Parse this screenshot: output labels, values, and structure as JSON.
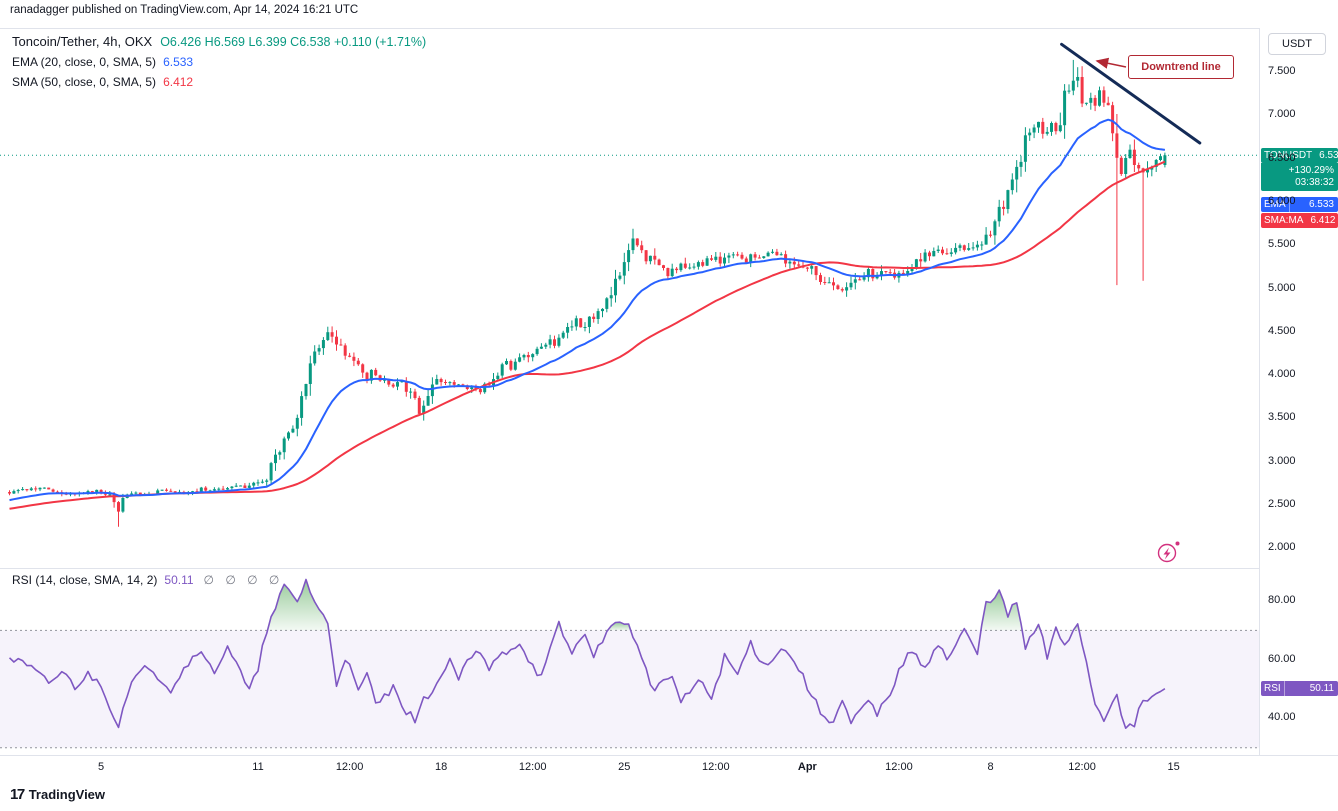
{
  "meta": {
    "publish_line": "ranadagger published on TradingView.com, Apr 14, 2024 16:21 UTC"
  },
  "header": {
    "title": "Toncoin/Tether, 4h, OKX",
    "ohlc_text": "O6.426  H6.569  L6.399  C6.538  +0.110 (+1.71%)",
    "ema_label": "EMA (20, close, 0, SMA, 5)",
    "ema_value": "6.533",
    "sma_label": "SMA (50, close, 0, SMA, 5)",
    "sma_value": "6.412"
  },
  "rsi_pane": {
    "label": "RSI (14, close, SMA, 14, 2)",
    "value": "50.11",
    "empties": "∅ ∅ ∅ ∅"
  },
  "axis": {
    "currency_label": "USDT"
  },
  "badges": {
    "price": {
      "symbol": "TONUSDT",
      "value": "6.538",
      "change_pct": "+130.29%",
      "countdown": "03:38:32"
    },
    "ema": {
      "label": "EMA",
      "value": "6.533"
    },
    "sma": {
      "label": "SMA:MA",
      "value": "6.412"
    },
    "rsi": {
      "label": "RSI",
      "value": "50.11"
    }
  },
  "annotations": {
    "callout_text": "Downtrend line"
  },
  "footer": {
    "brand": "TradingView",
    "logo_glyph": "17"
  },
  "colors": {
    "up": "#089981",
    "down": "#f23645",
    "ema": "#2962ff",
    "sma": "#f23645",
    "rsi": "#7e57c2",
    "overbought_fill": "#43a047",
    "trendline": "#142b57",
    "callout": "#b22833",
    "marker": "#d2317e",
    "muted": "#787b86",
    "grid_border": "#e0e3eb",
    "text": "#131722"
  },
  "chart_data": {
    "type": "candlestick",
    "title": "Toncoin/Tether, 4h, OKX",
    "symbol": "TONUSDT",
    "interval": "4h",
    "exchange": "OKX",
    "ohlc_current": {
      "open": 6.426,
      "high": 6.569,
      "low": 6.399,
      "close": 6.538,
      "change_abs": 0.11,
      "change_pct": 1.71
    },
    "indicators": {
      "ema20": 6.533,
      "sma50": 6.412,
      "rsi14": 50.11
    },
    "price_axis": {
      "ticks": [
        7.5,
        7.0,
        6.5,
        6.0,
        5.5,
        5.0,
        4.5,
        4.0,
        3.5,
        3.0,
        2.5,
        2.0
      ],
      "visible_range": [
        1.774,
        8.008
      ],
      "currency": "USDT"
    },
    "rsi_axis": {
      "ticks": [
        80,
        60,
        40
      ],
      "visible_range": [
        27.5,
        91.3
      ],
      "bands": [
        70,
        30
      ]
    },
    "candle_count": 266,
    "ema_seed": 2.55,
    "sma_seed_range": [
      2.25,
      2.65
    ],
    "current_price_line": 6.538,
    "close_path": [
      [
        0,
        2.65
      ],
      [
        4,
        2.68
      ],
      [
        7,
        2.7
      ],
      [
        10,
        2.66
      ],
      [
        14,
        2.62
      ],
      [
        18,
        2.67
      ],
      [
        21,
        2.66
      ],
      [
        24,
        2.57
      ],
      [
        25,
        2.42
      ],
      [
        26,
        2.56
      ],
      [
        28,
        2.65
      ],
      [
        32,
        2.63
      ],
      [
        35,
        2.66
      ],
      [
        40,
        2.64
      ],
      [
        44,
        2.69
      ],
      [
        48,
        2.67
      ],
      [
        51,
        2.72
      ],
      [
        54,
        2.7
      ],
      [
        57,
        2.76
      ],
      [
        59,
        2.82
      ],
      [
        61,
        3.05
      ],
      [
        63,
        3.25
      ],
      [
        65,
        3.42
      ],
      [
        67,
        3.7
      ],
      [
        69,
        4.1
      ],
      [
        71,
        4.35
      ],
      [
        73,
        4.48
      ],
      [
        74,
        4.42
      ],
      [
        75,
        4.34
      ],
      [
        77,
        4.26
      ],
      [
        79,
        4.15
      ],
      [
        81,
        4.03
      ],
      [
        82,
        3.96
      ],
      [
        83,
        4.03
      ],
      [
        85,
        3.94
      ],
      [
        88,
        3.89
      ],
      [
        90,
        3.92
      ],
      [
        92,
        3.77
      ],
      [
        94,
        3.58
      ],
      [
        95,
        3.66
      ],
      [
        97,
        3.85
      ],
      [
        98,
        3.94
      ],
      [
        100,
        3.89
      ],
      [
        103,
        3.9
      ],
      [
        106,
        3.85
      ],
      [
        108,
        3.83
      ],
      [
        111,
        3.95
      ],
      [
        113,
        4.08
      ],
      [
        114,
        4.15
      ],
      [
        115,
        4.08
      ],
      [
        117,
        4.17
      ],
      [
        120,
        4.26
      ],
      [
        122,
        4.34
      ],
      [
        124,
        4.42
      ],
      [
        125,
        4.34
      ],
      [
        128,
        4.52
      ],
      [
        130,
        4.63
      ],
      [
        131,
        4.54
      ],
      [
        134,
        4.68
      ],
      [
        136,
        4.8
      ],
      [
        138,
        4.92
      ],
      [
        140,
        5.15
      ],
      [
        142,
        5.45
      ],
      [
        143,
        5.56
      ],
      [
        144,
        5.46
      ],
      [
        146,
        5.3
      ],
      [
        147,
        5.38
      ],
      [
        149,
        5.25
      ],
      [
        151,
        5.12
      ],
      [
        152,
        5.19
      ],
      [
        154,
        5.27
      ],
      [
        156,
        5.21
      ],
      [
        159,
        5.3
      ],
      [
        161,
        5.35
      ],
      [
        163,
        5.3
      ],
      [
        166,
        5.38
      ],
      [
        168,
        5.32
      ],
      [
        170,
        5.38
      ],
      [
        172,
        5.35
      ],
      [
        175,
        5.42
      ],
      [
        177,
        5.35
      ],
      [
        179,
        5.27
      ],
      [
        181,
        5.3
      ],
      [
        184,
        5.21
      ],
      [
        186,
        5.12
      ],
      [
        188,
        5.04
      ],
      [
        191,
        4.96
      ],
      [
        193,
        5.04
      ],
      [
        194,
        5.12
      ],
      [
        197,
        5.19
      ],
      [
        199,
        5.12
      ],
      [
        201,
        5.21
      ],
      [
        203,
        5.15
      ],
      [
        206,
        5.23
      ],
      [
        208,
        5.3
      ],
      [
        210,
        5.38
      ],
      [
        213,
        5.46
      ],
      [
        215,
        5.42
      ],
      [
        217,
        5.5
      ],
      [
        219,
        5.46
      ],
      [
        222,
        5.53
      ],
      [
        224,
        5.58
      ],
      [
        225,
        5.67
      ],
      [
        226,
        5.79
      ],
      [
        228,
        5.95
      ],
      [
        229,
        6.08
      ],
      [
        230,
        6.19
      ],
      [
        231,
        6.31
      ],
      [
        232,
        6.48
      ],
      [
        233,
        6.71
      ],
      [
        234,
        6.83
      ],
      [
        236,
        6.88
      ],
      [
        237,
        6.77
      ],
      [
        238,
        6.83
      ],
      [
        239,
        6.92
      ],
      [
        240,
        6.85
      ],
      [
        241,
        6.97
      ],
      [
        242,
        7.23
      ],
      [
        244,
        7.43
      ],
      [
        245,
        7.35
      ],
      [
        246,
        7.23
      ],
      [
        247,
        7.12
      ],
      [
        248,
        7.2
      ],
      [
        249,
        7.08
      ],
      [
        250,
        7.23
      ],
      [
        252,
        7.06
      ],
      [
        253,
        6.88
      ],
      [
        254,
        6.6
      ],
      [
        255,
        6.36
      ],
      [
        256,
        6.48
      ],
      [
        257,
        6.56
      ],
      [
        258,
        6.44
      ],
      [
        260,
        6.31
      ],
      [
        261,
        6.36
      ],
      [
        262,
        6.44
      ],
      [
        263,
        6.51
      ],
      [
        264,
        6.48
      ],
      [
        265,
        6.538
      ]
    ],
    "wick_events": [
      {
        "i": 25,
        "low": 2.25
      },
      {
        "i": 73,
        "high": 4.56
      },
      {
        "i": 143,
        "high": 5.69
      },
      {
        "i": 244,
        "high": 7.64
      },
      {
        "i": 254,
        "low": 5.04
      },
      {
        "i": 260,
        "low": 5.09
      }
    ],
    "rsi_path": [
      [
        0,
        61
      ],
      [
        5,
        57
      ],
      [
        9,
        52
      ],
      [
        12,
        56
      ],
      [
        15,
        51
      ],
      [
        18,
        55
      ],
      [
        21,
        52
      ],
      [
        25,
        37
      ],
      [
        28,
        52
      ],
      [
        32,
        58
      ],
      [
        37,
        50
      ],
      [
        40,
        57
      ],
      [
        43,
        63
      ],
      [
        47,
        56
      ],
      [
        50,
        65
      ],
      [
        55,
        49
      ],
      [
        57,
        57
      ],
      [
        59,
        70
      ],
      [
        63,
        85
      ],
      [
        66,
        80
      ],
      [
        68,
        87
      ],
      [
        70,
        80
      ],
      [
        73,
        72
      ],
      [
        75,
        52
      ],
      [
        77,
        61
      ],
      [
        80,
        49
      ],
      [
        82,
        55
      ],
      [
        84,
        45
      ],
      [
        88,
        50
      ],
      [
        90,
        43
      ],
      [
        93,
        40
      ],
      [
        95,
        46
      ],
      [
        98,
        52
      ],
      [
        101,
        59
      ],
      [
        103,
        54
      ],
      [
        107,
        63
      ],
      [
        110,
        57
      ],
      [
        113,
        62
      ],
      [
        117,
        66
      ],
      [
        120,
        58
      ],
      [
        122,
        54
      ],
      [
        126,
        72
      ],
      [
        129,
        62
      ],
      [
        132,
        70
      ],
      [
        134,
        60
      ],
      [
        137,
        71
      ],
      [
        142,
        73
      ],
      [
        145,
        60
      ],
      [
        148,
        49
      ],
      [
        152,
        55
      ],
      [
        154,
        45
      ],
      [
        158,
        53
      ],
      [
        161,
        47
      ],
      [
        164,
        61
      ],
      [
        167,
        55
      ],
      [
        170,
        66
      ],
      [
        173,
        58
      ],
      [
        177,
        64
      ],
      [
        180,
        60
      ],
      [
        183,
        51
      ],
      [
        186,
        42
      ],
      [
        189,
        39
      ],
      [
        191,
        46
      ],
      [
        193,
        38
      ],
      [
        197,
        46
      ],
      [
        199,
        41
      ],
      [
        203,
        52
      ],
      [
        206,
        63
      ],
      [
        210,
        58
      ],
      [
        213,
        66
      ],
      [
        215,
        60
      ],
      [
        219,
        70
      ],
      [
        222,
        62
      ],
      [
        224,
        80
      ],
      [
        227,
        83
      ],
      [
        229,
        75
      ],
      [
        231,
        80
      ],
      [
        233,
        64
      ],
      [
        236,
        72
      ],
      [
        238,
        61
      ],
      [
        240,
        70
      ],
      [
        242,
        65
      ],
      [
        245,
        73
      ],
      [
        247,
        59
      ],
      [
        249,
        45
      ],
      [
        251,
        40
      ],
      [
        254,
        49
      ],
      [
        256,
        36
      ],
      [
        258,
        38
      ],
      [
        260,
        46
      ],
      [
        263,
        48
      ],
      [
        265,
        50.11
      ]
    ],
    "time_ticks": [
      {
        "label": "5",
        "i": 21
      },
      {
        "label": "11",
        "i": 57
      },
      {
        "label": "12:00",
        "i": 78
      },
      {
        "label": "18",
        "i": 99
      },
      {
        "label": "12:00",
        "i": 120
      },
      {
        "label": "25",
        "i": 141
      },
      {
        "label": "12:00",
        "i": 162
      },
      {
        "label": "Apr",
        "i": 183,
        "bold": true
      },
      {
        "label": "12:00",
        "i": 204
      },
      {
        "label": "8",
        "i": 225
      },
      {
        "label": "12:00",
        "i": 246
      },
      {
        "label": "15",
        "i": 267
      }
    ],
    "trendline": {
      "i1": 241.3,
      "p1": 7.82,
      "i2": 273,
      "p2": 6.68
    }
  }
}
